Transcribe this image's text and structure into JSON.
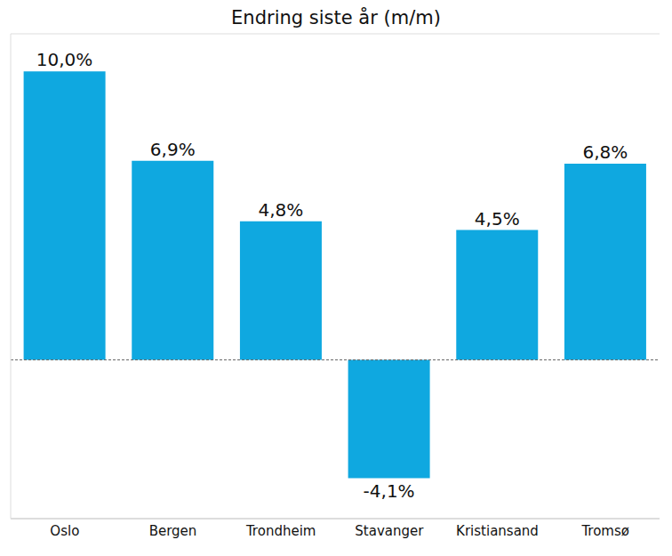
{
  "chart_data": {
    "type": "bar",
    "title": "Endring siste år (m/m)",
    "categories": [
      "Oslo",
      "Bergen",
      "Trondheim",
      "Stavanger",
      "Kristiansand",
      "Tromsø"
    ],
    "values": [
      10.0,
      6.9,
      4.8,
      -4.1,
      4.5,
      6.8
    ],
    "value_labels": [
      "10,0%",
      "6,9%",
      "4,8%",
      "-4,1%",
      "4,5%",
      "6,8%"
    ],
    "color": "#0fa8e0",
    "ylim": [
      -5.5,
      11.3
    ],
    "data_labels": true,
    "tick_labels": "x"
  }
}
